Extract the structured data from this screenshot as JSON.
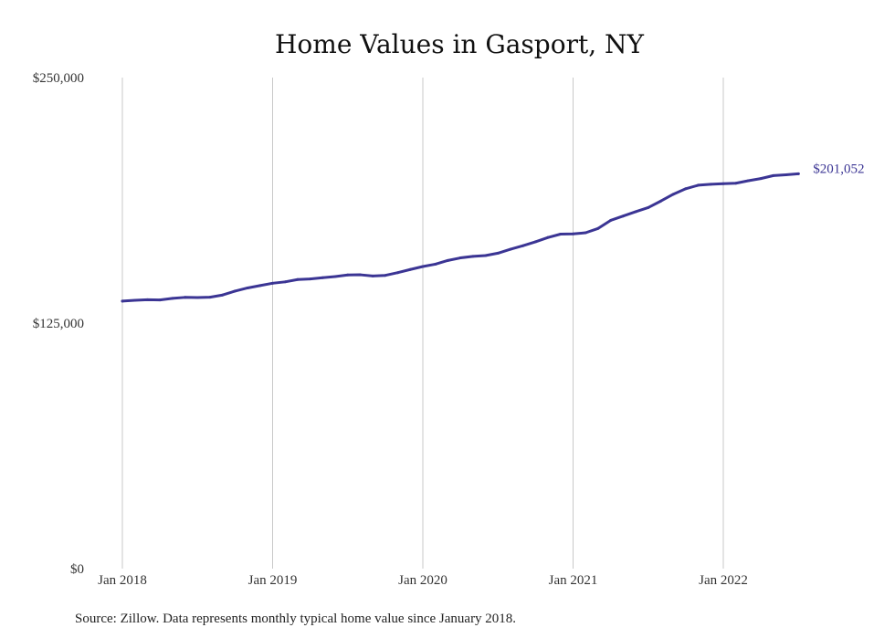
{
  "chart_data": {
    "type": "line",
    "title": "Home Values in Gasport, NY",
    "xlabel": "",
    "ylabel": "",
    "ylim": [
      0,
      250000
    ],
    "yticks": [
      {
        "value": 0,
        "label": "$0"
      },
      {
        "value": 125000,
        "label": "$125,000"
      },
      {
        "value": 250000,
        "label": "$250,000"
      }
    ],
    "xticks": [
      {
        "month_index": 0,
        "label": "Jan 2018"
      },
      {
        "month_index": 12,
        "label": "Jan 2019"
      },
      {
        "month_index": 24,
        "label": "Jan 2020"
      },
      {
        "month_index": 36,
        "label": "Jan 2021"
      },
      {
        "month_index": 48,
        "label": "Jan 2022"
      }
    ],
    "grid": "vertical",
    "legend": "none",
    "series": [
      {
        "color": "#3b3594",
        "x": [
          "2018-01",
          "2018-02",
          "2018-03",
          "2018-04",
          "2018-05",
          "2018-06",
          "2018-07",
          "2018-08",
          "2018-09",
          "2018-10",
          "2018-11",
          "2018-12",
          "2019-01",
          "2019-02",
          "2019-03",
          "2019-04",
          "2019-05",
          "2019-06",
          "2019-07",
          "2019-08",
          "2019-09",
          "2019-10",
          "2019-11",
          "2019-12",
          "2020-01",
          "2020-02",
          "2020-03",
          "2020-04",
          "2020-05",
          "2020-06",
          "2020-07",
          "2020-08",
          "2020-09",
          "2020-10",
          "2020-11",
          "2020-12",
          "2021-01",
          "2021-02",
          "2021-03",
          "2021-04",
          "2021-05",
          "2021-06",
          "2021-07",
          "2021-08",
          "2021-09",
          "2021-10",
          "2021-11",
          "2021-12",
          "2022-01",
          "2022-02",
          "2022-03",
          "2022-04",
          "2022-05",
          "2022-06",
          "2022-07"
        ],
        "values": [
          136200,
          136600,
          136900,
          136800,
          137600,
          138100,
          138000,
          138200,
          139300,
          141300,
          142900,
          144100,
          145300,
          146000,
          147200,
          147500,
          148100,
          148700,
          149500,
          149600,
          149000,
          149300,
          150700,
          152300,
          153800,
          155000,
          156900,
          158200,
          159000,
          159400,
          160600,
          162600,
          164400,
          166400,
          168600,
          170300,
          170400,
          171000,
          173200,
          177300,
          179500,
          181700,
          183800,
          187100,
          190600,
          193400,
          195200,
          195700,
          196000,
          196200,
          197500,
          198600,
          200100,
          200500,
          201052
        ]
      }
    ],
    "end_label": "$201,052",
    "source": "Source: Zillow. Data represents monthly typical home value since January 2018."
  }
}
